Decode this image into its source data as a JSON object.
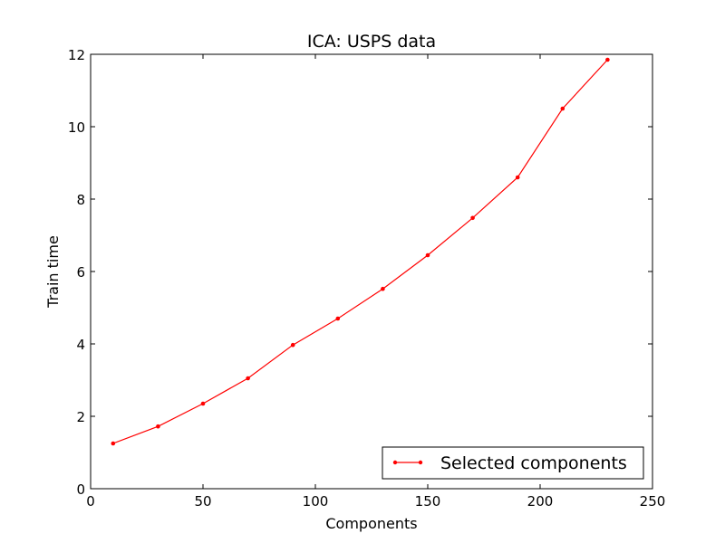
{
  "chart_data": {
    "type": "line",
    "title": "ICA: USPS data",
    "xlabel": "Components",
    "ylabel": "Train time",
    "xlim": [
      0,
      250
    ],
    "ylim": [
      0,
      12
    ],
    "xticks": [
      "0",
      "50",
      "100",
      "150",
      "200",
      "250"
    ],
    "yticks": [
      "0",
      "2",
      "4",
      "6",
      "8",
      "10",
      "12"
    ],
    "grid": false,
    "legend_position": "lower-right",
    "series": [
      {
        "name": "Selected components",
        "color": "#ff0000",
        "marker": "dot",
        "x": [
          10,
          30,
          50,
          70,
          90,
          110,
          130,
          150,
          170,
          190,
          210,
          230
        ],
        "y": [
          1.25,
          1.72,
          2.35,
          3.05,
          3.97,
          4.7,
          5.52,
          6.45,
          7.48,
          8.6,
          10.5,
          11.85
        ]
      }
    ]
  }
}
